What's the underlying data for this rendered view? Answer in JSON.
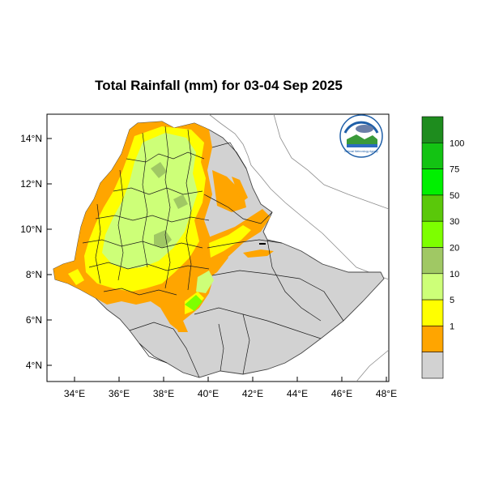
{
  "title": "Total Rainfall (mm) for 03-04 Sep 2025",
  "lat_ticks": [
    "14°N",
    "12°N",
    "10°N",
    "8°N",
    "6°N",
    "4°N"
  ],
  "lon_ticks": [
    "34°E",
    "36°E",
    "38°E",
    "40°E",
    "42°E",
    "44°E",
    "46°E",
    "48°E"
  ],
  "colorbar": {
    "labels": [
      "100",
      "75",
      "50",
      "30",
      "20",
      "10",
      "5",
      "1"
    ],
    "colors": [
      "#1e8c1e",
      "#13c313",
      "#00f000",
      "#5ac80a",
      "#7dff00",
      "#a0c864",
      "#cdff78",
      "#ffff00",
      "#ffa500",
      "#d2d2d2"
    ]
  },
  "logo": {
    "text": "National Meteorology Agency"
  }
}
